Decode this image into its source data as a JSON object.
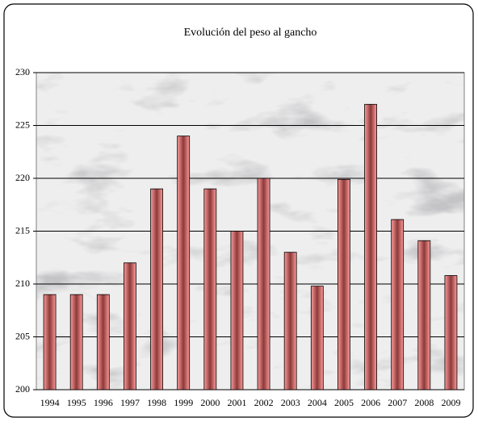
{
  "chart_data": {
    "type": "bar",
    "title": "Evolución del peso al gancho",
    "categories": [
      "1994",
      "1995",
      "1996",
      "1997",
      "1998",
      "1999",
      "2000",
      "2001",
      "2002",
      "2003",
      "2004",
      "2005",
      "2006",
      "2007",
      "2008",
      "2009"
    ],
    "values": [
      209,
      209,
      209,
      212,
      219,
      224,
      219,
      215,
      220,
      213,
      209.8,
      219.9,
      227,
      216.1,
      214.1,
      210.8
    ],
    "color": "#f08080",
    "ylim": [
      200,
      230
    ],
    "yticks": [
      200,
      205,
      210,
      215,
      220,
      225,
      230
    ],
    "grid": true
  }
}
